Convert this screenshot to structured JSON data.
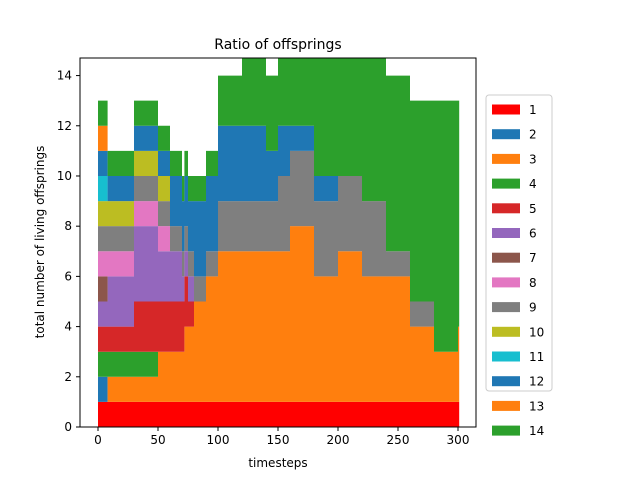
{
  "chart_data": {
    "type": "area",
    "title": "Ratio of offsprings",
    "xlabel": "timesteps",
    "ylabel": "total number of living offsprings",
    "xlim": [
      -15,
      315
    ],
    "ylim": [
      0,
      14.7
    ],
    "xticks": [
      0,
      50,
      100,
      150,
      200,
      250,
      300
    ],
    "yticks": [
      0,
      2,
      4,
      6,
      8,
      10,
      12,
      14
    ],
    "legend_position": "right",
    "series": [
      {
        "name": "1",
        "color": "#ff0000",
        "x": [
          0,
          8
        ],
        "values": [
          1,
          1
        ]
      },
      {
        "name": "2",
        "color": "#1f77b4",
        "x": [
          0,
          8
        ],
        "values": [
          1,
          0
        ]
      },
      {
        "name": "3",
        "color": "#ff7f0e",
        "x": [
          0,
          8,
          50,
          60,
          72,
          80,
          90,
          100,
          120,
          140,
          160,
          180,
          200,
          220,
          240,
          260,
          280,
          300
        ],
        "values": [
          0,
          1,
          2,
          2,
          3,
          4,
          5,
          6,
          6,
          6,
          7,
          5,
          6,
          5,
          5,
          3,
          2,
          3
        ]
      },
      {
        "name": "4",
        "color": "#2ca02c",
        "x": [
          0,
          8,
          50,
          60
        ],
        "values": [
          1,
          1,
          0,
          0
        ]
      },
      {
        "name": "5",
        "color": "#d62728",
        "x": [
          0,
          8,
          30,
          50,
          75,
          80
        ],
        "values": [
          1,
          1,
          2,
          2,
          1,
          0
        ]
      },
      {
        "name": "6",
        "color": "#9467bd",
        "x": [
          0,
          8,
          30,
          50,
          70,
          80
        ],
        "values": [
          1,
          2,
          3,
          2,
          1,
          0
        ]
      },
      {
        "name": "7",
        "color": "#8c564b",
        "x": [
          0,
          8
        ],
        "values": [
          1,
          0
        ]
      },
      {
        "name": "8",
        "color": "#e377c2",
        "x": [
          0,
          8,
          30,
          48,
          60
        ],
        "values": [
          1,
          1,
          1,
          1,
          0
        ]
      },
      {
        "name": "9",
        "color": "#7f7f7f",
        "x": [
          0,
          50,
          100,
          150,
          200,
          240,
          260,
          280,
          300
        ],
        "values": [
          1,
          1,
          2,
          3,
          3,
          1,
          1,
          0,
          0
        ]
      },
      {
        "name": "10",
        "color": "#bcbd22",
        "x": [
          0,
          8,
          30,
          50,
          60
        ],
        "values": [
          1,
          1,
          1,
          1,
          0
        ]
      },
      {
        "name": "11",
        "color": "#17becf",
        "x": [
          0,
          8
        ],
        "values": [
          1,
          0
        ]
      },
      {
        "name": "12",
        "color": "#1f77b4",
        "x": [
          0,
          60,
          80,
          100,
          120,
          140,
          160,
          180,
          200,
          220,
          240,
          260,
          280,
          300
        ],
        "values": [
          1,
          2,
          3,
          3,
          3,
          2,
          1,
          1,
          0,
          0,
          0,
          0,
          0,
          0
        ]
      },
      {
        "name": "13",
        "color": "#ff7f0e",
        "x": [
          0,
          8
        ],
        "values": [
          1,
          0
        ]
      },
      {
        "name": "14",
        "color": "#2ca02c",
        "x": [
          0,
          60,
          100,
          120,
          140,
          160,
          180,
          200,
          220,
          240,
          260,
          280,
          300
        ],
        "values": [
          1,
          1,
          2,
          3,
          3,
          5,
          6,
          5,
          6,
          7,
          8,
          10,
          9
        ]
      }
    ]
  }
}
